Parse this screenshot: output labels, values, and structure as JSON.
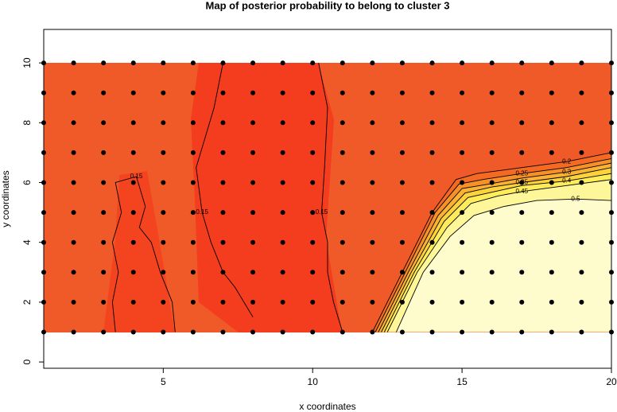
{
  "chart_data": {
    "type": "contour",
    "title": "Map of posterior probability to belong to cluster  3",
    "x_label": "x coordinates",
    "y_label": "y coordinates",
    "xlim": [
      1,
      20
    ],
    "ylim": [
      -0.21,
      11.12
    ],
    "xticks": [
      5,
      10,
      15,
      20
    ],
    "yticks": [
      0,
      2,
      4,
      6,
      8,
      10
    ],
    "grid_x": [
      1,
      2,
      3,
      4,
      5,
      6,
      7,
      8,
      9,
      10,
      11,
      12,
      13,
      14,
      15,
      16,
      17,
      18,
      19,
      20
    ],
    "grid_y": [
      1,
      2,
      3,
      4,
      5,
      6,
      7,
      8,
      9,
      10
    ],
    "point_color": "#000000",
    "contours": [
      {
        "level": 0.15,
        "color": "#f2471f",
        "x": [
          3.4,
          3.3,
          3.5,
          3.3,
          3.6,
          3.4,
          4.1,
          4.4,
          4.2,
          4.6,
          4.9,
          5.3,
          5.4
        ],
        "y": [
          1,
          2,
          3,
          4,
          5,
          6,
          6.2,
          5.2,
          4.5,
          4,
          3,
          2,
          1
        ]
      },
      {
        "level": 0.15,
        "color": "#f2471f",
        "x": [
          8.0,
          7.4,
          7.0,
          6.6,
          6.3,
          6.1,
          6.7,
          7.0
        ],
        "y": [
          1.5,
          2.5,
          3,
          4,
          5,
          6.5,
          8.5,
          10
        ]
      },
      {
        "level": 0.15,
        "color": "#f2471f",
        "x": [
          11,
          10.7,
          10.5,
          10.5,
          10.3,
          10.4,
          10.5,
          10.2
        ],
        "y": [
          1,
          2,
          3,
          4,
          5,
          6.5,
          8.5,
          10
        ]
      },
      {
        "level": 0.2,
        "color": "#f46a22",
        "x": [
          12,
          13,
          14,
          14.8,
          15.5,
          17,
          18.5,
          20
        ],
        "y": [
          1,
          3,
          5,
          6.1,
          6.3,
          6.5,
          6.7,
          7.0
        ]
      },
      {
        "level": 0.25,
        "color": "#f8902a",
        "x": [
          12.1,
          13.1,
          14.1,
          14.9,
          15.7,
          17,
          18.5,
          20
        ],
        "y": [
          1,
          3,
          5,
          5.95,
          6.1,
          6.3,
          6.5,
          6.8
        ]
      },
      {
        "level": 0.3,
        "color": "#fbb232",
        "x": [
          12.2,
          13.2,
          14.2,
          15,
          15.9,
          17,
          18.5,
          20
        ],
        "y": [
          1,
          3,
          4.9,
          5.8,
          5.95,
          6.15,
          6.35,
          6.65
        ]
      },
      {
        "level": 0.35,
        "color": "#fdd33c",
        "x": [
          12.3,
          13.3,
          14.3,
          15.1,
          16,
          17,
          18.5,
          20
        ],
        "y": [
          1,
          3,
          4.8,
          5.65,
          5.85,
          6.0,
          6.2,
          6.5
        ]
      },
      {
        "level": 0.4,
        "color": "#feec5a",
        "x": [
          12.4,
          13.4,
          14.4,
          15.2,
          16.1,
          17,
          18.5,
          20
        ],
        "y": [
          1,
          3,
          4.7,
          5.5,
          5.7,
          5.9,
          6.05,
          6.3
        ]
      },
      {
        "level": 0.45,
        "color": "#fef79a",
        "x": [
          12.5,
          13.5,
          14.5,
          15.3,
          16.2,
          17,
          18.5,
          20
        ],
        "y": [
          1,
          3,
          4.5,
          5.3,
          5.55,
          5.7,
          5.9,
          6.1
        ]
      },
      {
        "level": 0.5,
        "color": "#fefccc",
        "x": [
          12.8,
          13.7,
          14.6,
          15.4,
          16.4,
          17.5,
          18.8,
          20
        ],
        "y": [
          1,
          3,
          4.2,
          4.9,
          5.2,
          5.4,
          5.45,
          5.4
        ]
      }
    ]
  }
}
